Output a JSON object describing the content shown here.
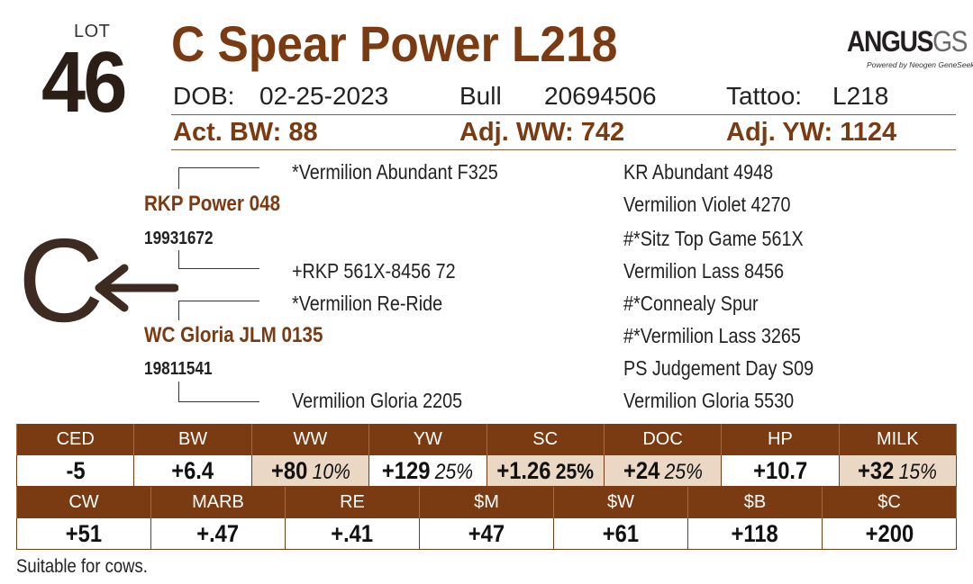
{
  "lot": {
    "label": "LOT",
    "number": "46"
  },
  "animal": {
    "name": "C Spear Power L218",
    "dob_label": "DOB:",
    "dob": "02-25-2023",
    "sex": "Bull",
    "registration": "20694506",
    "tattoo_label": "Tattoo:",
    "tattoo": "L218"
  },
  "weights": {
    "bw": "Act. BW: 88",
    "ww": "Adj. WW: 742",
    "yw": "Adj. YW: 1124"
  },
  "logo": {
    "angus": "ANGUS",
    "gs": "GS",
    "sub": "Powered by Neogen GeneSeek"
  },
  "pedigree": {
    "sire": {
      "name": "RKP Power 048",
      "reg": "19931672"
    },
    "sire_sire": "*Vermilion Abundant F325",
    "sire_dam": "+RKP 561X-8456 72",
    "dam": {
      "name": "WC Gloria JLM 0135",
      "reg": "19811541"
    },
    "dam_sire": "*Vermilion Re-Ride",
    "dam_dam": "Vermilion Gloria 2205",
    "gen3": [
      "KR Abundant 4948",
      "Vermilion Violet 4270",
      "#*Sitz Top Game 561X",
      "Vermilion Lass 8456",
      "#*Connealy Spur",
      "#*Vermilion Lass 3265",
      "PS Judgement Day S09",
      "Vermilion Gloria 5530"
    ],
    "brand_letter": "C"
  },
  "epd_row1": {
    "headers": [
      "CED",
      "BW",
      "WW",
      "YW",
      "SC",
      "DOC",
      "HP",
      "MILK"
    ],
    "values": [
      "-5",
      "+6.4",
      "+80",
      "+129",
      "+1.26",
      "+24",
      "+10.7",
      "+32"
    ],
    "percentiles": [
      "",
      "",
      "10%",
      "25%",
      "25%",
      "25%",
      "",
      "15%"
    ]
  },
  "epd_row2": {
    "headers": [
      "CW",
      "MARB",
      "RE",
      "$M",
      "$W",
      "$B",
      "$C"
    ],
    "values": [
      "+51",
      "+.47",
      "+.41",
      "+47",
      "+61",
      "+118",
      "+200"
    ]
  },
  "footnote": "Suitable for cows.",
  "colors": {
    "brand": "#7a3b12",
    "highlight": "#ead8c4"
  },
  "icons": {
    "arrow": "left-arrow-icon"
  }
}
